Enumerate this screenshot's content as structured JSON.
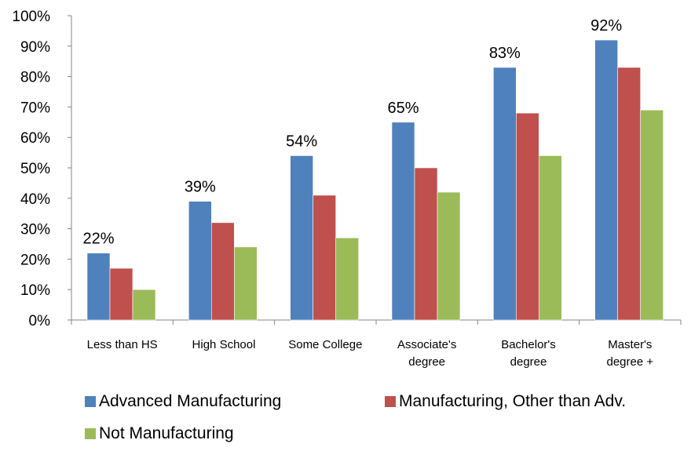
{
  "chart_data": {
    "type": "bar",
    "categories": [
      [
        "Less than HS"
      ],
      [
        "High School"
      ],
      [
        "Some College"
      ],
      [
        "Associate's",
        "degree"
      ],
      [
        "Bachelor's",
        "degree"
      ],
      [
        "Master's",
        "degree +"
      ]
    ],
    "series": [
      {
        "name": "Advanced Manufacturing",
        "color": "#4f81bd",
        "values": [
          22,
          39,
          54,
          65,
          83,
          92
        ],
        "data_labels": [
          "22%",
          "39%",
          "54%",
          "65%",
          "83%",
          "92%"
        ]
      },
      {
        "name": "Manufacturing, Other than Adv.",
        "color": "#c0504d",
        "values": [
          17,
          32,
          41,
          50,
          68,
          83
        ]
      },
      {
        "name": "Not Manufacturing",
        "color": "#9bbb59",
        "values": [
          10,
          24,
          27,
          42,
          54,
          69
        ]
      }
    ],
    "y_ticks": [
      "0%",
      "10%",
      "20%",
      "30%",
      "40%",
      "50%",
      "60%",
      "70%",
      "80%",
      "90%",
      "100%"
    ],
    "ylim": [
      0,
      100
    ],
    "grid": false,
    "legend_position": "bottom"
  }
}
